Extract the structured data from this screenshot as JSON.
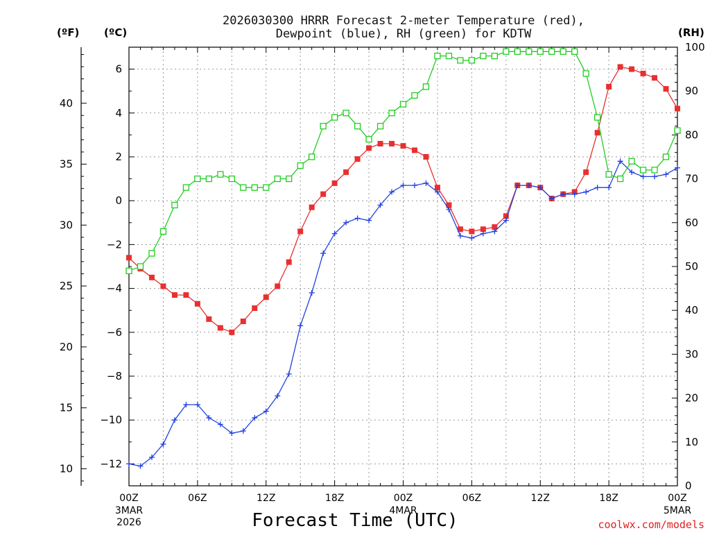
{
  "chart_data": {
    "type": "line",
    "title_line1": "2026030300 HRRR Forecast 2-meter Temperature (red),",
    "title_line2": "Dewpoint (blue), RH (green) for KDTW",
    "xlabel": "Forecast Time (UTC)",
    "credit": "coolwx.com/models",
    "unit_left_f": "(ºF)",
    "unit_left_c": "(ºC)",
    "unit_right": "(RH)",
    "x_range_hours": [
      0,
      48
    ],
    "c_range": [
      -13,
      7
    ],
    "rh_range": [
      0,
      100
    ],
    "grid": true,
    "c_ticks": [
      "−12",
      "−10",
      "−8",
      "−6",
      "−4",
      "−2",
      "0",
      "2",
      "4",
      "6"
    ],
    "c_tick_values": [
      -12,
      -10,
      -8,
      -6,
      -4,
      -2,
      0,
      2,
      4,
      6
    ],
    "f_ticks": [
      "10",
      "15",
      "20",
      "25",
      "30",
      "35",
      "40"
    ],
    "f_tick_values": [
      10,
      15,
      20,
      25,
      30,
      35,
      40
    ],
    "rh_ticks": [
      "0",
      "10",
      "20",
      "30",
      "40",
      "50",
      "60",
      "70",
      "80",
      "90",
      "100"
    ],
    "rh_tick_values": [
      0,
      10,
      20,
      30,
      40,
      50,
      60,
      70,
      80,
      90,
      100
    ],
    "x_ticks": [
      {
        "hour": 0,
        "label": "00Z",
        "sub1": "3MAR",
        "sub2": "2026"
      },
      {
        "hour": 6,
        "label": "06Z",
        "sub1": "",
        "sub2": ""
      },
      {
        "hour": 12,
        "label": "12Z",
        "sub1": "",
        "sub2": ""
      },
      {
        "hour": 18,
        "label": "18Z",
        "sub1": "",
        "sub2": ""
      },
      {
        "hour": 24,
        "label": "00Z",
        "sub1": "4MAR",
        "sub2": ""
      },
      {
        "hour": 30,
        "label": "06Z",
        "sub1": "",
        "sub2": ""
      },
      {
        "hour": 36,
        "label": "12Z",
        "sub1": "",
        "sub2": ""
      },
      {
        "hour": 42,
        "label": "18Z",
        "sub1": "",
        "sub2": ""
      },
      {
        "hour": 48,
        "label": "00Z",
        "sub1": "5MAR",
        "sub2": ""
      }
    ],
    "series": [
      {
        "key": "temperature",
        "color": "#e83030",
        "marker": "filled-square",
        "axis": "celsius",
        "values": [
          -2.6,
          -3.1,
          -3.5,
          -3.9,
          -4.3,
          -4.3,
          -4.7,
          -5.4,
          -5.8,
          -6.0,
          -5.5,
          -4.9,
          -4.4,
          -3.9,
          -2.8,
          -1.4,
          -0.3,
          0.3,
          0.8,
          1.3,
          1.9,
          2.4,
          2.6,
          2.6,
          2.5,
          2.3,
          2.0,
          0.6,
          -0.2,
          -1.3,
          -1.4,
          -1.3,
          -1.2,
          -0.7,
          0.7,
          0.7,
          0.6,
          0.1,
          0.3,
          0.4,
          1.3,
          3.1,
          5.2,
          6.1,
          6.0,
          5.8,
          5.6,
          5.1,
          4.2
        ]
      },
      {
        "key": "dewpoint",
        "color": "#2040e0",
        "marker": "plus",
        "axis": "celsius",
        "values": [
          -12.0,
          -12.1,
          -11.7,
          -11.1,
          -10.0,
          -9.3,
          -9.3,
          -9.9,
          -10.2,
          -10.6,
          -10.5,
          -9.9,
          -9.6,
          -8.9,
          -7.9,
          -5.7,
          -4.2,
          -2.4,
          -1.5,
          -1.0,
          -0.8,
          -0.9,
          -0.2,
          0.4,
          0.7,
          0.7,
          0.8,
          0.4,
          -0.4,
          -1.6,
          -1.7,
          -1.5,
          -1.4,
          -0.9,
          0.7,
          0.7,
          0.6,
          0.1,
          0.3,
          0.3,
          0.4,
          0.6,
          0.6,
          1.8,
          1.3,
          1.1,
          1.1,
          1.2,
          1.5
        ]
      },
      {
        "key": "rh",
        "color": "#22cc22",
        "marker": "open-square",
        "axis": "rh",
        "values": [
          49,
          50,
          53,
          58,
          64,
          68,
          70,
          70,
          71,
          70,
          68,
          68,
          68,
          70,
          70,
          73,
          75,
          82,
          84,
          85,
          82,
          79,
          82,
          85,
          87,
          89,
          91,
          98,
          98,
          97,
          97,
          98,
          98,
          99,
          99,
          99,
          99,
          99,
          99,
          99,
          94,
          84,
          71,
          70,
          74,
          72,
          72,
          75,
          81
        ]
      }
    ]
  }
}
